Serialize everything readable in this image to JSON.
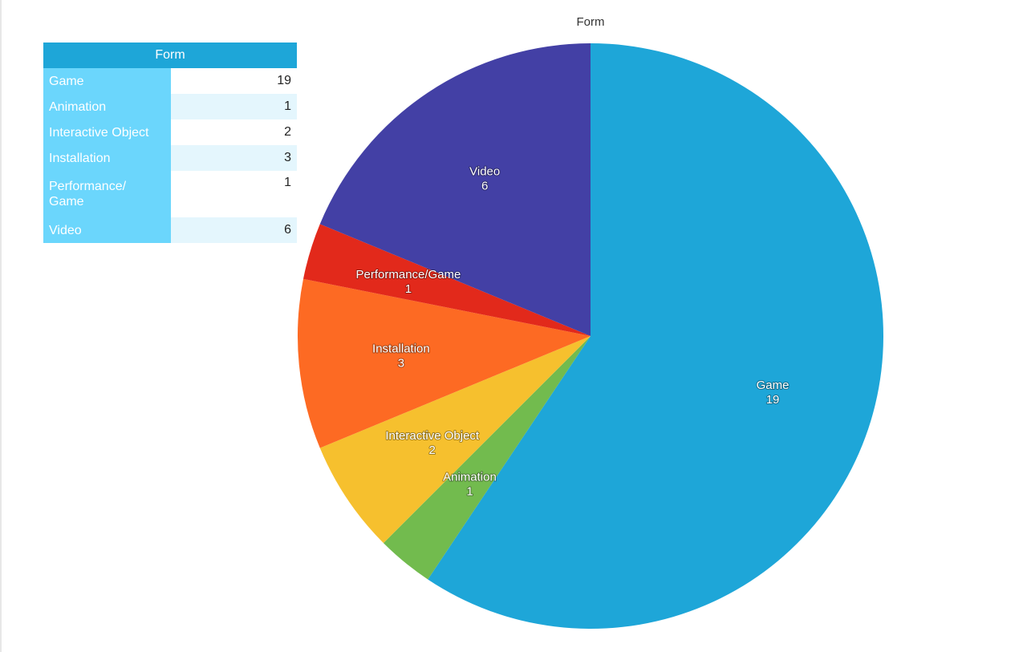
{
  "chart_data": {
    "type": "pie",
    "title": "Form",
    "categories": [
      "Game",
      "Animation",
      "Interactive Object",
      "Installation",
      "Performance/Game",
      "Video"
    ],
    "values": [
      19,
      1,
      2,
      3,
      1,
      6
    ],
    "colors": [
      "#1ea6d8",
      "#72bb4e",
      "#f6c02e",
      "#fd6a23",
      "#e2291b",
      "#4340a5"
    ],
    "legend": "table-top-left"
  },
  "table": {
    "header": "Form",
    "rows": [
      {
        "label": "Game",
        "value": "19"
      },
      {
        "label": "Animation",
        "value": "1"
      },
      {
        "label": "Interactive Object",
        "value": "2"
      },
      {
        "label": "Installation",
        "value": "3"
      },
      {
        "label": "Performance/\nGame",
        "value": "1"
      },
      {
        "label": "Video",
        "value": "6"
      }
    ]
  }
}
